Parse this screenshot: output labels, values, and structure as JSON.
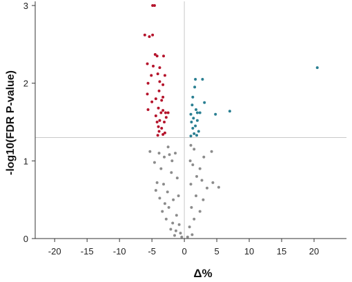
{
  "chart_data": {
    "type": "scatter",
    "title": "",
    "xlabel": "Δ%",
    "ylabel": "-log10(FDR P-value)",
    "xlim": [
      -23,
      25
    ],
    "ylim": [
      0,
      3
    ],
    "xticks": [
      -20,
      -15,
      -10,
      -5,
      0,
      5,
      10,
      15,
      20
    ],
    "yticks": [
      0,
      1,
      2,
      3
    ],
    "threshold": {
      "x": 0,
      "y": 1.3
    },
    "grid": false,
    "legend": "none",
    "colors": {
      "down_significant": "#b5142c",
      "up_significant": "#2a7f92",
      "not_significant": "#8c8c8c",
      "axis": "#333333",
      "threshold_line": "#c8c8c8"
    },
    "series": [
      {
        "color_key": "down_significant",
        "points": [
          [
            -4.9,
            3.0
          ],
          [
            -4.6,
            3.0
          ],
          [
            -6.1,
            2.62
          ],
          [
            -5.4,
            2.6
          ],
          [
            -4.9,
            2.62
          ],
          [
            -4.5,
            2.37
          ],
          [
            -4.2,
            2.35
          ],
          [
            -3.2,
            2.35
          ],
          [
            -5.7,
            2.25
          ],
          [
            -4.8,
            2.22
          ],
          [
            -3.8,
            2.2
          ],
          [
            -5.1,
            2.1
          ],
          [
            -4.1,
            2.12
          ],
          [
            -3.0,
            2.1
          ],
          [
            -5.6,
            2.0
          ],
          [
            -3.8,
            2.02
          ],
          [
            -3.3,
            1.98
          ],
          [
            -5.7,
            1.86
          ],
          [
            -3.9,
            1.9
          ],
          [
            -3.3,
            1.82
          ],
          [
            -5.0,
            1.76
          ],
          [
            -4.4,
            1.8
          ],
          [
            -3.5,
            1.78
          ],
          [
            -5.6,
            1.66
          ],
          [
            -4.0,
            1.68
          ],
          [
            -3.6,
            1.62
          ],
          [
            -3.3,
            1.65
          ],
          [
            -2.9,
            1.62
          ],
          [
            -2.5,
            1.62
          ],
          [
            -4.4,
            1.58
          ],
          [
            -3.8,
            1.52
          ],
          [
            -4.2,
            1.5
          ],
          [
            -3.1,
            1.5
          ],
          [
            -2.8,
            1.56
          ],
          [
            -4.0,
            1.44
          ],
          [
            -3.5,
            1.42
          ],
          [
            -3.9,
            1.38
          ],
          [
            -3.0,
            1.36
          ],
          [
            -4.1,
            1.33
          ],
          [
            -3.3,
            1.34
          ]
        ]
      },
      {
        "color_key": "up_significant",
        "points": [
          [
            20.5,
            2.2
          ],
          [
            2.8,
            2.05
          ],
          [
            1.7,
            2.05
          ],
          [
            1.6,
            1.95
          ],
          [
            1.3,
            1.82
          ],
          [
            3.1,
            1.75
          ],
          [
            1.2,
            1.72
          ],
          [
            1.8,
            1.66
          ],
          [
            7.0,
            1.64
          ],
          [
            4.8,
            1.6
          ],
          [
            2.0,
            1.62
          ],
          [
            2.4,
            1.62
          ],
          [
            1.0,
            1.6
          ],
          [
            1.4,
            1.55
          ],
          [
            2.0,
            1.52
          ],
          [
            1.1,
            1.5
          ],
          [
            1.7,
            1.45
          ],
          [
            1.3,
            1.42
          ],
          [
            2.2,
            1.38
          ],
          [
            1.5,
            1.35
          ],
          [
            1.0,
            1.32
          ],
          [
            1.9,
            1.33
          ]
        ]
      },
      {
        "color_key": "not_significant",
        "points": [
          [
            -5.3,
            1.12
          ],
          [
            -3.9,
            1.1
          ],
          [
            -3.1,
            1.05
          ],
          [
            -2.3,
            1.08
          ],
          [
            -1.4,
            1.1
          ],
          [
            -4.6,
            0.98
          ],
          [
            -3.6,
            0.9
          ],
          [
            -2.0,
            0.85
          ],
          [
            -4.2,
            0.72
          ],
          [
            -3.2,
            0.7
          ],
          [
            -2.6,
            0.6
          ],
          [
            -4.4,
            0.62
          ],
          [
            -3.0,
            0.45
          ],
          [
            -1.7,
            0.5
          ],
          [
            -2.4,
            0.4
          ],
          [
            -3.4,
            0.35
          ],
          [
            -1.2,
            0.3
          ],
          [
            -2.8,
            0.25
          ],
          [
            -1.8,
            0.2
          ],
          [
            -0.8,
            0.18
          ],
          [
            -2.1,
            0.12
          ],
          [
            -1.3,
            0.1
          ],
          [
            -0.6,
            0.07
          ],
          [
            -1.5,
            0.04
          ],
          [
            -0.4,
            0.02
          ],
          [
            -2.5,
            1.18
          ],
          [
            -1.9,
            1.0
          ],
          [
            -1.1,
            0.78
          ],
          [
            -0.9,
            0.55
          ],
          [
            -3.8,
            0.52
          ],
          [
            1.0,
            1.2
          ],
          [
            1.5,
            1.15
          ],
          [
            3.0,
            1.05
          ],
          [
            4.2,
            1.12
          ],
          [
            1.3,
            0.95
          ],
          [
            2.4,
            0.9
          ],
          [
            1.0,
            0.7
          ],
          [
            2.7,
            0.75
          ],
          [
            3.5,
            0.65
          ],
          [
            4.4,
            0.72
          ],
          [
            5.3,
            0.66
          ],
          [
            1.8,
            0.55
          ],
          [
            1.1,
            0.4
          ],
          [
            2.4,
            0.35
          ],
          [
            1.5,
            0.25
          ],
          [
            0.8,
            0.15
          ],
          [
            1.2,
            0.05
          ],
          [
            0.5,
            0.02
          ],
          [
            2.9,
            0.5
          ],
          [
            1.9,
            0.8
          ],
          [
            0.9,
            1.0
          ]
        ]
      }
    ]
  }
}
